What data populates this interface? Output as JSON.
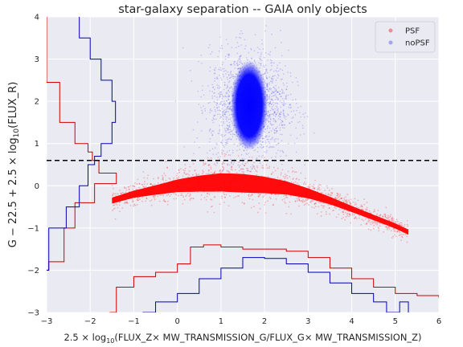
{
  "chart_data": {
    "type": "scatter",
    "title": "star-galaxy separation -- GAIA only objects",
    "xlabel_parts": {
      "pre": "2.5 × log",
      "sub": "10",
      "post": "(FLUX_Z× MW_TRANSMISSION_G/FLUX_G× MW_TRANSMISSION_Z)"
    },
    "ylabel_parts": {
      "pre": "G − 22.5 + 2.5 × log",
      "sub": "10",
      "post": "(FLUX_R)"
    },
    "xlim": [
      -3,
      6
    ],
    "ylim": [
      -3,
      4
    ],
    "xticks": [
      "−3",
      "−2",
      "−1",
      "0",
      "1",
      "2",
      "3",
      "4",
      "5",
      "6"
    ],
    "yticks": [
      "−3",
      "−2",
      "−1",
      "0",
      "1",
      "2",
      "3",
      "4"
    ],
    "grid": true,
    "legend": {
      "placement": "top-right"
    },
    "colors": {
      "psf": "#ff0000",
      "nopsf": "#0000ff",
      "background": "#eaeaf2",
      "threshold": "#000000"
    },
    "series": [
      {
        "name": "PSF",
        "kind": "point-cloud",
        "cloud_shape": [
          [
            -1.5,
            -0.35
          ],
          [
            -1.0,
            -0.2
          ],
          [
            -0.5,
            -0.1
          ],
          [
            0.0,
            0.0
          ],
          [
            0.5,
            0.05
          ],
          [
            1.0,
            0.08
          ],
          [
            1.5,
            0.06
          ],
          [
            2.0,
            0.02
          ],
          [
            2.5,
            -0.05
          ],
          [
            3.0,
            -0.18
          ],
          [
            3.5,
            -0.35
          ],
          [
            4.0,
            -0.55
          ],
          [
            4.5,
            -0.75
          ],
          [
            5.0,
            -0.95
          ],
          [
            5.3,
            -1.1
          ]
        ]
      },
      {
        "name": "noPSF",
        "kind": "point-cloud",
        "center": [
          1.65,
          1.9
        ]
      }
    ],
    "threshold_line": {
      "y": 0.6,
      "style": "dashed"
    },
    "marginal_histograms": {
      "x_axis": {
        "PSF": [
          [
            -1.55,
            -3.0
          ],
          [
            -1.4,
            -2.4
          ],
          [
            -1.0,
            -2.15
          ],
          [
            -0.5,
            -2.05
          ],
          [
            0.0,
            -1.85
          ],
          [
            0.3,
            -1.45
          ],
          [
            0.6,
            -1.4
          ],
          [
            1.0,
            -1.45
          ],
          [
            1.5,
            -1.5
          ],
          [
            2.0,
            -1.5
          ],
          [
            2.5,
            -1.55
          ],
          [
            3.0,
            -1.7
          ],
          [
            3.5,
            -1.95
          ],
          [
            4.0,
            -2.2
          ],
          [
            4.5,
            -2.4
          ],
          [
            5.0,
            -2.55
          ],
          [
            5.5,
            -2.6
          ],
          [
            6.0,
            -2.65
          ]
        ],
        "noPSF": [
          [
            -0.8,
            -3.0
          ],
          [
            -0.5,
            -2.75
          ],
          [
            0.0,
            -2.55
          ],
          [
            0.5,
            -2.2
          ],
          [
            1.0,
            -1.95
          ],
          [
            1.5,
            -1.7
          ],
          [
            2.0,
            -1.72
          ],
          [
            2.5,
            -1.85
          ],
          [
            3.0,
            -2.05
          ],
          [
            3.5,
            -2.3
          ],
          [
            4.0,
            -2.55
          ],
          [
            4.5,
            -2.75
          ],
          [
            4.8,
            -3.0
          ],
          [
            5.1,
            -2.75
          ],
          [
            5.3,
            -3.0
          ]
        ]
      },
      "y_axis": {
        "PSF": [
          [
            4.0,
            -3.0
          ],
          [
            3.0,
            -3.0
          ],
          [
            2.45,
            -2.7
          ],
          [
            2.25,
            -2.7
          ],
          [
            1.5,
            -2.35
          ],
          [
            1.0,
            -2.05
          ],
          [
            0.8,
            -1.95
          ],
          [
            0.6,
            -1.8
          ],
          [
            0.3,
            -1.4
          ],
          [
            0.05,
            -1.9
          ],
          [
            -0.4,
            -2.35
          ],
          [
            -1.0,
            -2.6
          ],
          [
            -1.8,
            -2.95
          ],
          [
            -2.0,
            -3.0
          ]
        ],
        "noPSF": [
          [
            4.0,
            -2.25
          ],
          [
            3.5,
            -2.0
          ],
          [
            3.0,
            -1.75
          ],
          [
            2.5,
            -1.5
          ],
          [
            2.0,
            -1.42
          ],
          [
            1.5,
            -1.5
          ],
          [
            1.0,
            -1.75
          ],
          [
            0.7,
            -1.9
          ],
          [
            0.5,
            -2.05
          ],
          [
            0.0,
            -2.25
          ],
          [
            -0.5,
            -2.55
          ],
          [
            -1.0,
            -2.95
          ],
          [
            -2.0,
            -3.0
          ]
        ]
      }
    }
  }
}
